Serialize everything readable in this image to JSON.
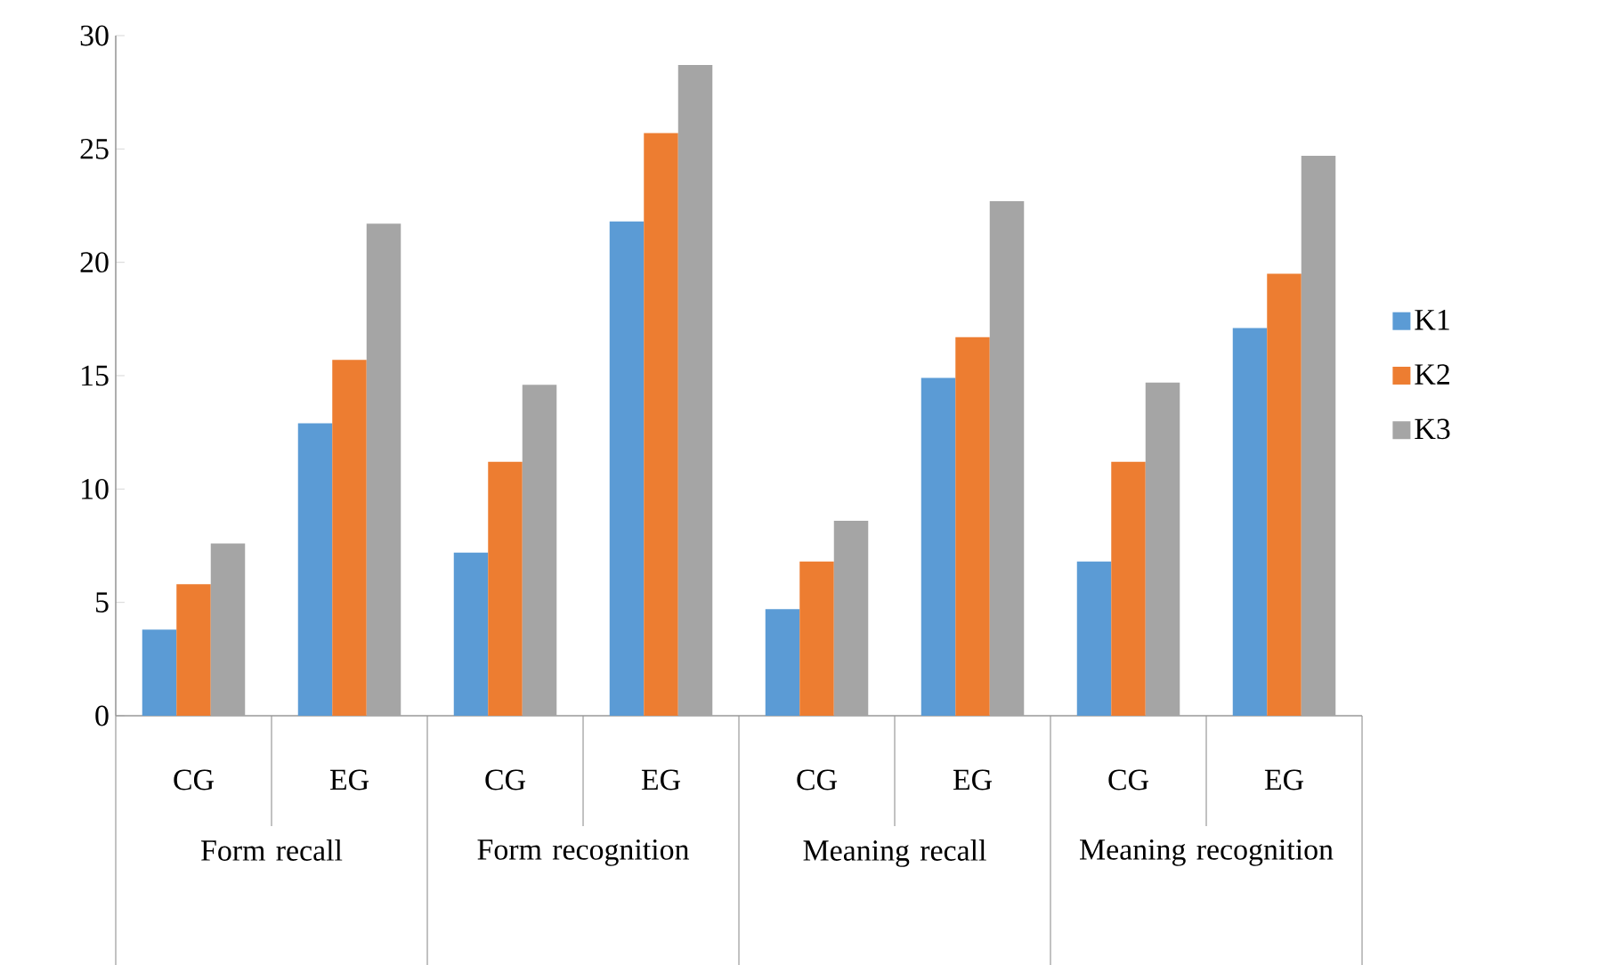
{
  "chart_data": {
    "type": "bar",
    "categories": [
      "CG",
      "EG",
      "CG",
      "EG",
      "CG",
      "EG",
      "CG",
      "EG"
    ],
    "annotations": [
      "Form recall",
      "Form recognition",
      "Meaning recall",
      "Meaning recognition"
    ],
    "series": [
      {
        "name": "K1",
        "color": "#5b9bd5",
        "values": [
          3.8,
          12.9,
          7.2,
          21.8,
          4.7,
          14.9,
          6.8,
          17.1
        ]
      },
      {
        "name": "K2",
        "color": "#ed7d31",
        "values": [
          5.8,
          15.7,
          11.2,
          25.7,
          6.8,
          16.7,
          11.2,
          19.5
        ]
      },
      {
        "name": "K3",
        "color": "#a5a5a5",
        "values": [
          7.6,
          21.7,
          14.6,
          28.7,
          8.6,
          22.7,
          14.7,
          24.7
        ]
      }
    ],
    "ylim": [
      0,
      30
    ],
    "yticks": [
      0,
      5,
      10,
      15,
      20,
      25,
      30
    ],
    "grid": false,
    "legend": "right"
  }
}
